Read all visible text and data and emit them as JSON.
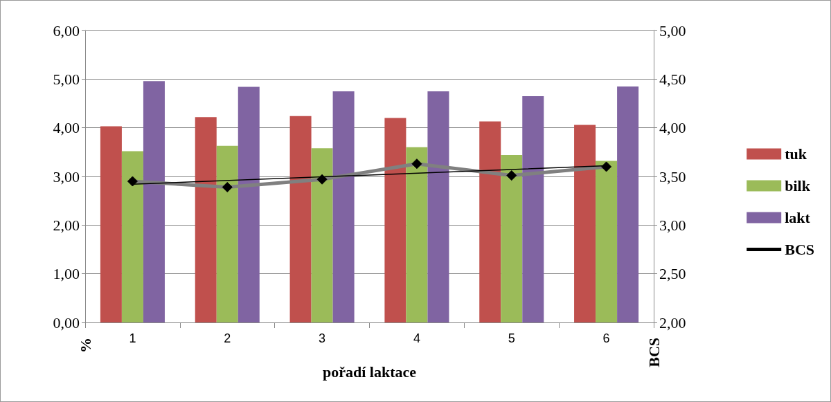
{
  "chart_data": {
    "type": "bar",
    "xlabel": "pořadí laktace",
    "ylabel": "%",
    "y2label": "BCS",
    "categories": [
      "1",
      "2",
      "3",
      "4",
      "5",
      "6"
    ],
    "series": [
      {
        "name": "tuk",
        "color": "#c0504d",
        "values": [
          4.03,
          4.22,
          4.24,
          4.2,
          4.13,
          4.06
        ]
      },
      {
        "name": "bilk",
        "color": "#9bbb59",
        "values": [
          3.52,
          3.63,
          3.58,
          3.6,
          3.44,
          3.32
        ]
      },
      {
        "name": "lakt",
        "color": "#8064a2",
        "values": [
          4.96,
          4.84,
          4.75,
          4.75,
          4.65,
          4.85
        ]
      },
      {
        "name": "BCS",
        "type": "line",
        "axis": "y2",
        "color": "#808080",
        "marker": "diamond",
        "values": [
          3.45,
          3.39,
          3.47,
          3.63,
          3.51,
          3.6
        ]
      },
      {
        "type": "line",
        "axis": "y2",
        "color": "#000000",
        "x": [
          "1",
          "6"
        ],
        "values": [
          3.42,
          3.61
        ]
      }
    ],
    "ylim": [
      0,
      6
    ],
    "yticks": [
      {
        "value": 0,
        "label": "0,00"
      },
      {
        "value": 1,
        "label": "1,00"
      },
      {
        "value": 2,
        "label": "2,00"
      },
      {
        "value": 3,
        "label": "3,00"
      },
      {
        "value": 4,
        "label": "4,00"
      },
      {
        "value": 5,
        "label": "5,00"
      },
      {
        "value": 6,
        "label": "6,00"
      }
    ],
    "y2lim": [
      2,
      5
    ],
    "y2ticks": [
      {
        "value": 2,
        "label": "2,00"
      },
      {
        "value": 2.5,
        "label": "2,50"
      },
      {
        "value": 3,
        "label": "3,00"
      },
      {
        "value": 3.5,
        "label": "3,50"
      },
      {
        "value": 4,
        "label": "4,00"
      },
      {
        "value": 4.5,
        "label": "4,50"
      },
      {
        "value": 5,
        "label": "5,00"
      }
    ],
    "grid": "y",
    "legend": "right"
  }
}
